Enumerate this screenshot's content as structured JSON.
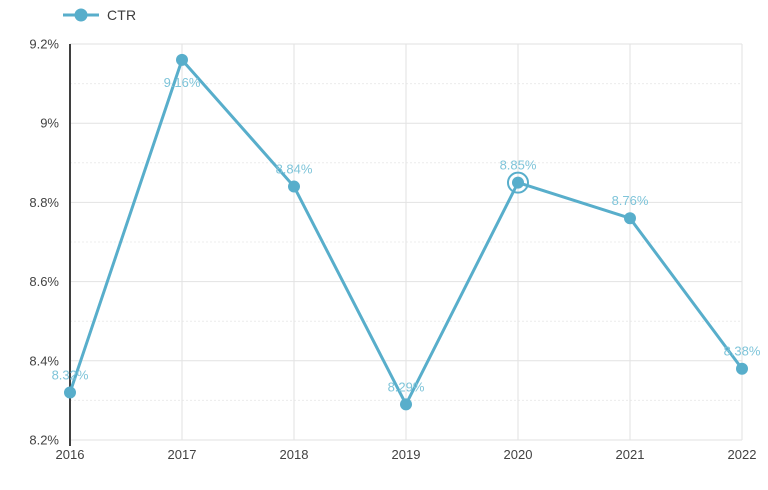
{
  "legend": {
    "label": "CTR"
  },
  "colors": {
    "series": "#58AECB",
    "data_label": "#7EC4D9",
    "axis": "#3f3f3f",
    "tick_text": "#424242",
    "grid_major": "#e2e2e2",
    "grid_minor": "#ececec",
    "background": "#ffffff"
  },
  "chart_data": {
    "type": "line",
    "title": "",
    "xlabel": "",
    "ylabel": "",
    "series_name": "CTR",
    "categories": [
      "2016",
      "2017",
      "2018",
      "2019",
      "2020",
      "2021",
      "2022"
    ],
    "values": [
      8.32,
      9.16,
      8.84,
      8.29,
      8.85,
      8.76,
      8.38
    ],
    "data_labels": [
      "8.32%",
      "9.16%",
      "8.84%",
      "8.29%",
      "8.85%",
      "8.76%",
      "8.38%"
    ],
    "label_position": [
      "above",
      "below",
      "above",
      "above",
      "above",
      "above",
      "above"
    ],
    "emphasized_point_index": 4,
    "ylim": [
      8.2,
      9.2
    ],
    "y_major_ticks": [
      8.2,
      8.4,
      8.6,
      8.8,
      9.0,
      9.2
    ],
    "y_major_tick_labels": [
      "8.2%",
      "8.4%",
      "8.6%",
      "8.8%",
      "9%",
      "9.2%"
    ],
    "y_minor_ticks": [
      8.3,
      8.5,
      8.7,
      8.9,
      9.1
    ],
    "grid": "on",
    "legend_position": "top-left"
  }
}
